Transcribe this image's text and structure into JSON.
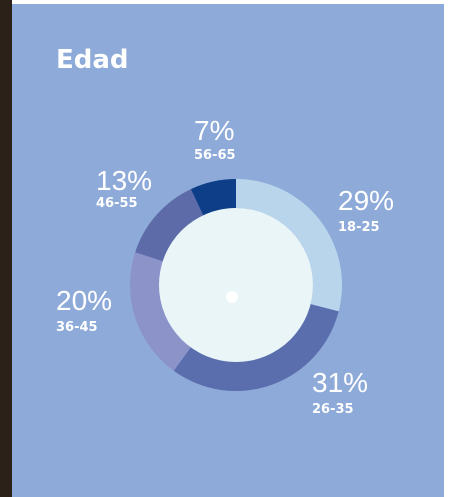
{
  "chart_data": {
    "type": "donut",
    "title": "Edad",
    "categories": [
      "18-25",
      "26-35",
      "36-45",
      "46-55",
      "56-65"
    ],
    "values": [
      29,
      31,
      20,
      13,
      7
    ],
    "value_labels": [
      "29%",
      "31%",
      "20%",
      "13%",
      "7%"
    ],
    "colors": [
      "#b9d5ec",
      "#5a6ead",
      "#8b93c9",
      "#5d6ba9",
      "#0e3e88"
    ]
  }
}
